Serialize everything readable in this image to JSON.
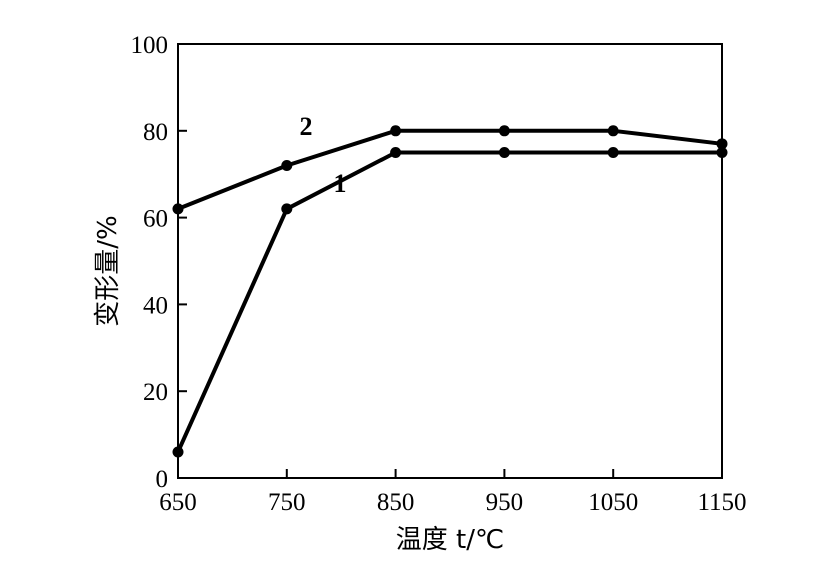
{
  "chart_data": {
    "type": "line",
    "x": [
      650,
      750,
      850,
      950,
      1050,
      1150
    ],
    "xlabel": "温度 t/℃",
    "ylabel": "变形量/%",
    "xlim": [
      650,
      1150
    ],
    "ylim": [
      0,
      100
    ],
    "x_ticks": [
      "650",
      "750",
      "850",
      "950",
      "1050",
      "1150"
    ],
    "y_ticks": [
      "0",
      "20",
      "40",
      "60",
      "80",
      "100"
    ],
    "grid": false,
    "series": [
      {
        "name": "1",
        "values": [
          6,
          62,
          75,
          75,
          75,
          75
        ]
      },
      {
        "name": "2",
        "values": [
          62,
          72,
          80,
          80,
          80,
          77
        ]
      }
    ],
    "line_color": "#000000"
  }
}
